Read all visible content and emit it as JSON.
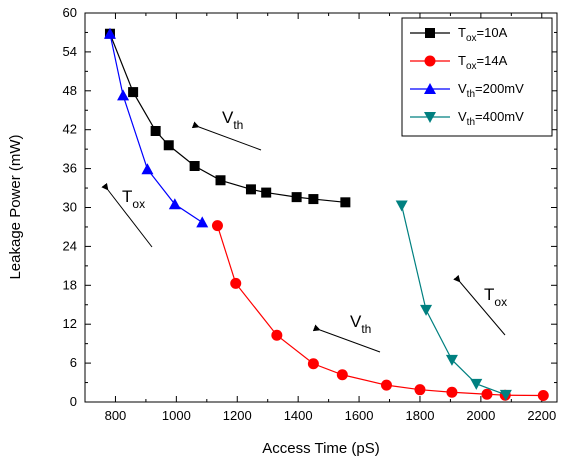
{
  "chart_data": {
    "type": "line",
    "xlabel": "Access Time (pS)",
    "ylabel": "Leakage Power (mW)",
    "xlim": [
      700,
      2250
    ],
    "ylim": [
      0,
      60
    ],
    "x_ticks": [
      800,
      1000,
      1200,
      1400,
      1600,
      1800,
      2000,
      2200
    ],
    "y_ticks": [
      0,
      6,
      12,
      18,
      24,
      30,
      36,
      42,
      48,
      54,
      60
    ],
    "legend_position": "top-right",
    "series": [
      {
        "name_main": "T",
        "name_sub": "ox",
        "name_rest": "=10A",
        "color": "#000000",
        "marker": "square",
        "points": [
          [
            782,
            56.8
          ],
          [
            858,
            47.8
          ],
          [
            932,
            41.8
          ],
          [
            975,
            39.6
          ],
          [
            1060,
            36.4
          ],
          [
            1145,
            34.2
          ],
          [
            1245,
            32.8
          ],
          [
            1295,
            32.3
          ],
          [
            1395,
            31.6
          ],
          [
            1450,
            31.3
          ],
          [
            1555,
            30.8
          ]
        ]
      },
      {
        "name_main": "T",
        "name_sub": "ox",
        "name_rest": "=14A",
        "color": "#ff0000",
        "marker": "circle",
        "points": [
          [
            1135,
            27.2
          ],
          [
            1195,
            18.3
          ],
          [
            1330,
            10.3
          ],
          [
            1450,
            5.9
          ],
          [
            1545,
            4.2
          ],
          [
            1690,
            2.6
          ],
          [
            1800,
            1.9
          ],
          [
            1905,
            1.5
          ],
          [
            2020,
            1.2
          ],
          [
            2080,
            1.05
          ],
          [
            2205,
            1.0
          ]
        ]
      },
      {
        "name_main": "V",
        "name_sub": "th",
        "name_rest": "=200mV",
        "color": "#0000ff",
        "marker": "triangle-up",
        "points": [
          [
            782,
            56.8
          ],
          [
            825,
            47.3
          ],
          [
            905,
            35.9
          ],
          [
            995,
            30.5
          ],
          [
            1085,
            27.7
          ]
        ]
      },
      {
        "name_main": "V",
        "name_sub": "th",
        "name_rest": "=400mV",
        "color": "#008080",
        "marker": "triangle-down",
        "points": [
          [
            1740,
            30.3
          ],
          [
            1820,
            14.2
          ],
          [
            1905,
            6.5
          ],
          [
            1985,
            2.8
          ],
          [
            2082,
            1.1
          ]
        ]
      }
    ],
    "annotations": [
      {
        "id": "vth-top",
        "main": "V",
        "sub": "th"
      },
      {
        "id": "tox-left",
        "main": "T",
        "sub": "ox"
      },
      {
        "id": "vth-mid",
        "main": "V",
        "sub": "th"
      },
      {
        "id": "tox-right",
        "main": "T",
        "sub": "ox"
      }
    ]
  }
}
